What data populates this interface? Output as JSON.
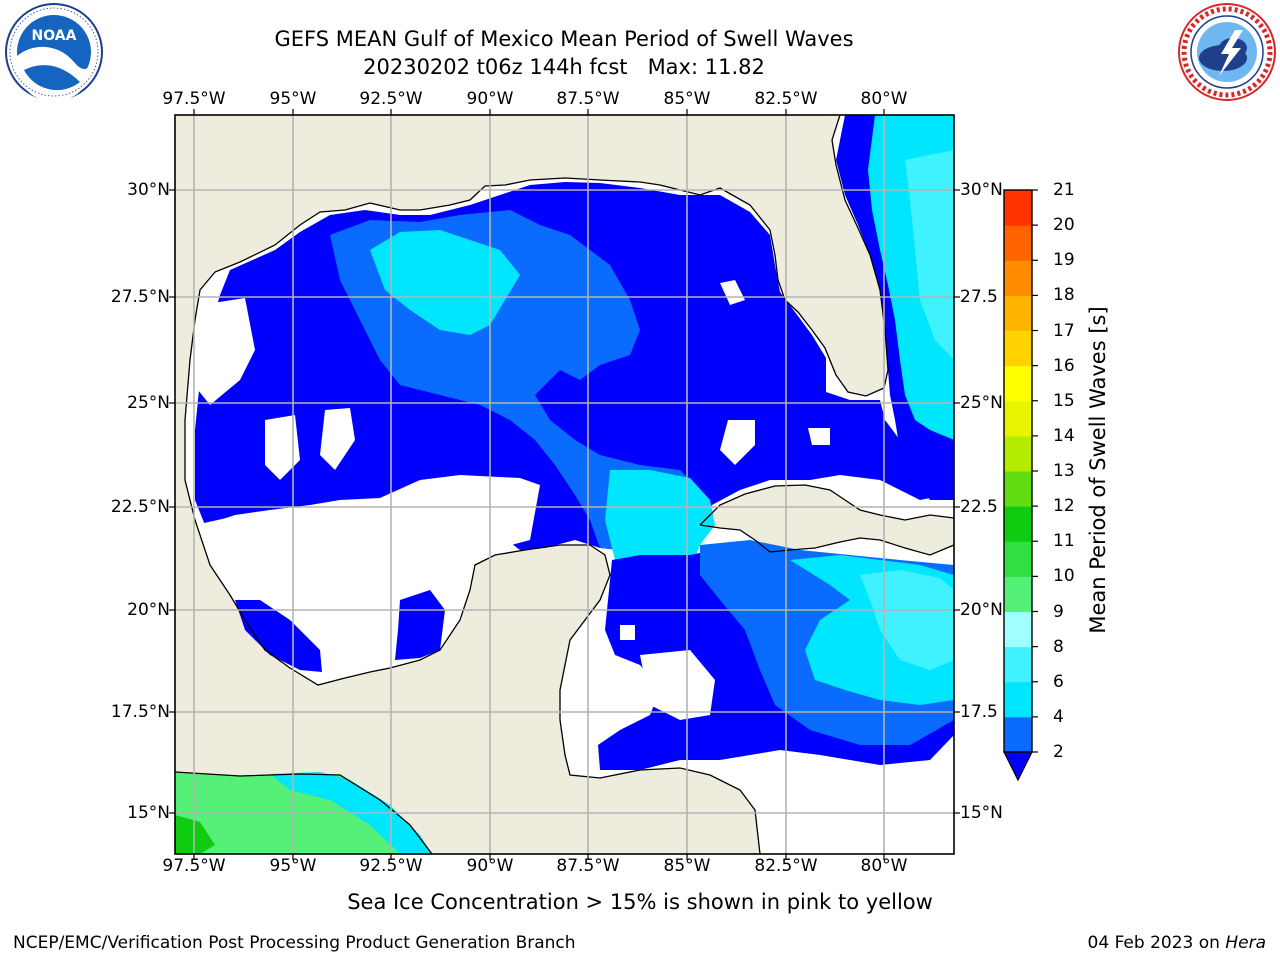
{
  "title_line1": "GEFS MEAN Gulf of Mexico Mean Period of Swell Waves",
  "title_line2_date": "20230202 t06z 144h fcst",
  "title_line2_max": "Max: 11.82",
  "logos": {
    "left": {
      "name": "noaa-logo",
      "text": "NOAA",
      "ring_text": "NATIONAL OCEANIC AND ATMOSPHERIC ADMINISTRATION · U.S. DEPARTMENT OF COMMERCE"
    },
    "right": {
      "name": "nws-logo",
      "ring_text": "NATIONAL WEATHER SERVICE"
    }
  },
  "lon_labels": [
    "97.5°W",
    "95°W",
    "92.5°W",
    "90°W",
    "87.5°W",
    "85°W",
    "82.5°W",
    "80°W"
  ],
  "lat_labels_left": [
    "30°N",
    "27.5°N",
    "25°N",
    "22.5°N",
    "20°N",
    "17.5°N",
    "15°N"
  ],
  "lat_labels_right": [
    "30°N",
    "27.5",
    "25°N",
    "22.5",
    "20°N",
    "17.5",
    "15°N"
  ],
  "colorbar": {
    "label": "Mean Period of Swell Waves [s]",
    "ticks": [
      "2",
      "4",
      "6",
      "8",
      "9",
      "10",
      "11",
      "12",
      "13",
      "14",
      "15",
      "16",
      "17",
      "18",
      "19",
      "20",
      "21"
    ],
    "colors": [
      "#0a6cff",
      "#00e6ff",
      "#40f2ff",
      "#a0ffff",
      "#54f078",
      "#30e040",
      "#10cc10",
      "#60dc10",
      "#b4ec00",
      "#e8f400",
      "#ffff00",
      "#ffd200",
      "#ffb400",
      "#ff8c00",
      "#ff6400",
      "#ff3200",
      "#ff0000"
    ],
    "under_color": "#0000ff"
  },
  "colors": {
    "land": "#eeecdc",
    "low": "#0000ff",
    "mid": "#0a6cff",
    "high": "#00e6ff",
    "higher": "#40f2ff",
    "green": "#54f078",
    "green_dark": "#10cc10",
    "grid": "#b4b4b4"
  },
  "note": "Sea Ice Concentration > 15% is shown in pink to yellow",
  "footer_left": "NCEP/EMC/Verification Post Processing Product Generation Branch",
  "footer_right_date": "04 Feb 2023 on",
  "footer_right_host": "Hera"
}
